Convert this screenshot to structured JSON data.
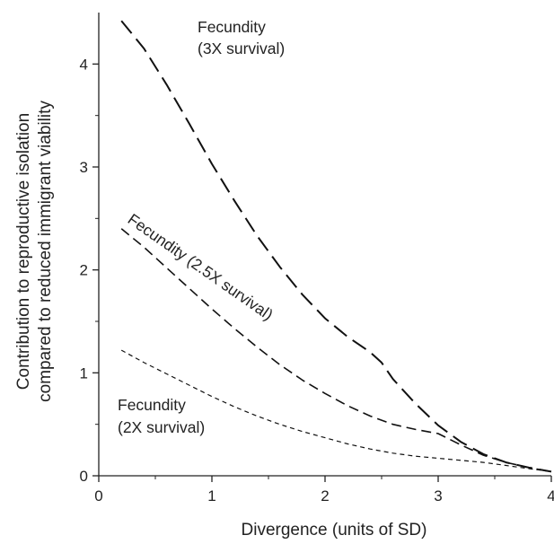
{
  "chart_data": {
    "type": "line",
    "xlabel": "Divergence (units of SD)",
    "ylabel_lines": [
      "Contribution to reproductive isolation",
      "compared to reduced immigrant viability"
    ],
    "xlim": [
      0,
      4
    ],
    "ylim": [
      0,
      4.5
    ],
    "xticks": [
      "0",
      "1",
      "2",
      "3",
      "4"
    ],
    "yticks": [
      "0",
      "1",
      "2",
      "3",
      "4"
    ],
    "grid": false,
    "legend": "none",
    "series": [
      {
        "name": "Fecundity (3X survival)",
        "label_lines": [
          "Fecundity",
          "(3X survival)"
        ],
        "dash": "long",
        "x": [
          0.2,
          0.4,
          0.6,
          0.8,
          1.0,
          1.2,
          1.4,
          1.6,
          1.8,
          2.0,
          2.2,
          2.4,
          2.5,
          2.6,
          2.8,
          3.0,
          3.2,
          3.4,
          3.6,
          3.8,
          4.0
        ],
        "y": [
          4.42,
          4.15,
          3.8,
          3.42,
          3.03,
          2.67,
          2.33,
          2.03,
          1.76,
          1.53,
          1.35,
          1.2,
          1.1,
          0.94,
          0.7,
          0.49,
          0.33,
          0.21,
          0.13,
          0.08,
          0.04
        ]
      },
      {
        "name": "Fecundity (2.5X survival)",
        "label_lines": [
          "Fecundity (2.5X survival)"
        ],
        "dash": "medium",
        "x": [
          0.2,
          0.4,
          0.6,
          0.8,
          1.0,
          1.2,
          1.4,
          1.6,
          1.8,
          2.0,
          2.2,
          2.4,
          2.6,
          2.8,
          3.0,
          3.2,
          3.4,
          3.6,
          3.8,
          4.0
        ],
        "y": [
          2.4,
          2.22,
          2.02,
          1.82,
          1.62,
          1.43,
          1.25,
          1.08,
          0.93,
          0.8,
          0.68,
          0.58,
          0.5,
          0.45,
          0.41,
          0.3,
          0.2,
          0.13,
          0.08,
          0.04
        ]
      },
      {
        "name": "Fecundity (2X survival)",
        "label_lines": [
          "Fecundity",
          "(2X survival)"
        ],
        "dash": "short",
        "x": [
          0.2,
          0.4,
          0.6,
          0.8,
          1.0,
          1.2,
          1.4,
          1.6,
          1.8,
          2.0,
          2.2,
          2.4,
          2.6,
          2.8,
          3.0,
          3.2,
          3.4,
          3.6,
          3.8,
          4.0
        ],
        "y": [
          1.22,
          1.1,
          0.99,
          0.88,
          0.77,
          0.67,
          0.58,
          0.5,
          0.43,
          0.37,
          0.31,
          0.26,
          0.22,
          0.19,
          0.17,
          0.15,
          0.13,
          0.1,
          0.07,
          0.04
        ]
      }
    ]
  }
}
